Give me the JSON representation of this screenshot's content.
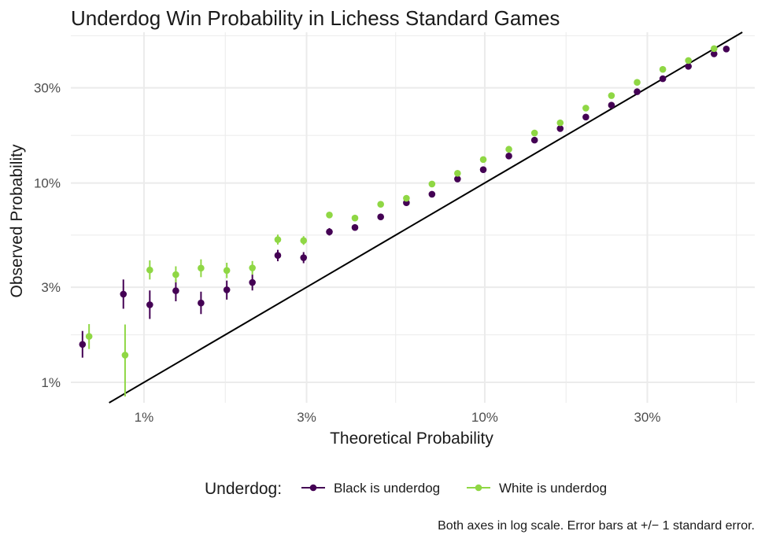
{
  "chart_data": {
    "type": "scatter",
    "title": "Underdog Win Probability in Lichess Standard Games",
    "xlabel": "Theoretical Probability",
    "ylabel": "Observed Probability",
    "x_scale": "log",
    "y_scale": "log",
    "xlim": [
      0.0061,
      0.62
    ],
    "ylim": [
      0.0079,
      0.57
    ],
    "x_ticks": [
      {
        "value": 0.01,
        "label": "1%"
      },
      {
        "value": 0.03,
        "label": "3%"
      },
      {
        "value": 0.1,
        "label": "10%"
      },
      {
        "value": 0.3,
        "label": "30%"
      }
    ],
    "y_ticks": [
      {
        "value": 0.01,
        "label": "1%"
      },
      {
        "value": 0.03,
        "label": "3%"
      },
      {
        "value": 0.1,
        "label": "10%"
      },
      {
        "value": 0.3,
        "label": "30%"
      }
    ],
    "x_minor": [
      0.00548,
      0.01732,
      0.05477,
      0.17321,
      0.54772
    ],
    "y_minor": [
      0.00548,
      0.01732,
      0.05477,
      0.17321,
      0.54772
    ],
    "reference_line": {
      "type": "identity",
      "color": "#000000"
    },
    "legend": {
      "title": "Underdog:",
      "position": "bottom"
    },
    "caption": "Both axes in log scale. Error bars at +/− 1 standard error.",
    "series": [
      {
        "name": "Black is underdog",
        "color": "#440154",
        "points": [
          {
            "x": 0.0066,
            "y": 0.0155,
            "lo": 0.0133,
            "hi": 0.0181
          },
          {
            "x": 0.0087,
            "y": 0.0277,
            "lo": 0.0234,
            "hi": 0.0328
          },
          {
            "x": 0.0104,
            "y": 0.0245,
            "lo": 0.0208,
            "hi": 0.0289
          },
          {
            "x": 0.0124,
            "y": 0.0288,
            "lo": 0.0255,
            "hi": 0.0327
          },
          {
            "x": 0.0147,
            "y": 0.025,
            "lo": 0.022,
            "hi": 0.0285
          },
          {
            "x": 0.0175,
            "y": 0.0291,
            "lo": 0.026,
            "hi": 0.0324
          },
          {
            "x": 0.0208,
            "y": 0.0317,
            "lo": 0.0289,
            "hi": 0.0347
          },
          {
            "x": 0.0247,
            "y": 0.0433,
            "lo": 0.0405,
            "hi": 0.0462
          },
          {
            "x": 0.0294,
            "y": 0.0422,
            "lo": 0.0396,
            "hi": 0.045
          },
          {
            "x": 0.035,
            "y": 0.0569,
            "lo": 0.0545,
            "hi": 0.0594
          },
          {
            "x": 0.0416,
            "y": 0.0598,
            "lo": 0.0579,
            "hi": 0.0618
          },
          {
            "x": 0.0495,
            "y": 0.0676
          },
          {
            "x": 0.0589,
            "y": 0.0796
          },
          {
            "x": 0.07,
            "y": 0.0878
          },
          {
            "x": 0.0832,
            "y": 0.1047
          },
          {
            "x": 0.099,
            "y": 0.1166
          },
          {
            "x": 0.1177,
            "y": 0.1365
          },
          {
            "x": 0.14,
            "y": 0.164
          },
          {
            "x": 0.1665,
            "y": 0.1874
          },
          {
            "x": 0.198,
            "y": 0.2141
          },
          {
            "x": 0.2354,
            "y": 0.2455
          },
          {
            "x": 0.28,
            "y": 0.2868
          },
          {
            "x": 0.333,
            "y": 0.3332
          },
          {
            "x": 0.3959,
            "y": 0.3844
          },
          {
            "x": 0.4709,
            "y": 0.444
          },
          {
            "x": 0.5116,
            "y": 0.4697
          }
        ]
      },
      {
        "name": "White is underdog",
        "color": "#8fd744",
        "points": [
          {
            "x": 0.0069,
            "y": 0.017,
            "lo": 0.0147,
            "hi": 0.0196
          },
          {
            "x": 0.0088,
            "y": 0.0137,
            "lo": 0.0085,
            "hi": 0.0195
          },
          {
            "x": 0.0104,
            "y": 0.0366,
            "lo": 0.0328,
            "hi": 0.0409
          },
          {
            "x": 0.0124,
            "y": 0.0347,
            "lo": 0.0317,
            "hi": 0.0382
          },
          {
            "x": 0.0147,
            "y": 0.0374,
            "lo": 0.0337,
            "hi": 0.0414
          },
          {
            "x": 0.0175,
            "y": 0.0364,
            "lo": 0.0333,
            "hi": 0.0398
          },
          {
            "x": 0.0208,
            "y": 0.0375,
            "lo": 0.0347,
            "hi": 0.0406
          },
          {
            "x": 0.0247,
            "y": 0.052,
            "lo": 0.0491,
            "hi": 0.0551
          },
          {
            "x": 0.0294,
            "y": 0.0514,
            "lo": 0.0489,
            "hi": 0.0541
          },
          {
            "x": 0.035,
            "y": 0.0691,
            "lo": 0.067,
            "hi": 0.0712
          },
          {
            "x": 0.0416,
            "y": 0.0667,
            "lo": 0.065,
            "hi": 0.0684
          },
          {
            "x": 0.0495,
            "y": 0.0782
          },
          {
            "x": 0.0589,
            "y": 0.0838
          },
          {
            "x": 0.07,
            "y": 0.0988
          },
          {
            "x": 0.0832,
            "y": 0.1118
          },
          {
            "x": 0.099,
            "y": 0.1311
          },
          {
            "x": 0.1177,
            "y": 0.1476
          },
          {
            "x": 0.14,
            "y": 0.1781
          },
          {
            "x": 0.1665,
            "y": 0.2003
          },
          {
            "x": 0.198,
            "y": 0.2373
          },
          {
            "x": 0.2354,
            "y": 0.2742
          },
          {
            "x": 0.28,
            "y": 0.3195
          },
          {
            "x": 0.333,
            "y": 0.3714
          },
          {
            "x": 0.3959,
            "y": 0.4111
          },
          {
            "x": 0.4709,
            "y": 0.4719
          }
        ]
      }
    ]
  }
}
